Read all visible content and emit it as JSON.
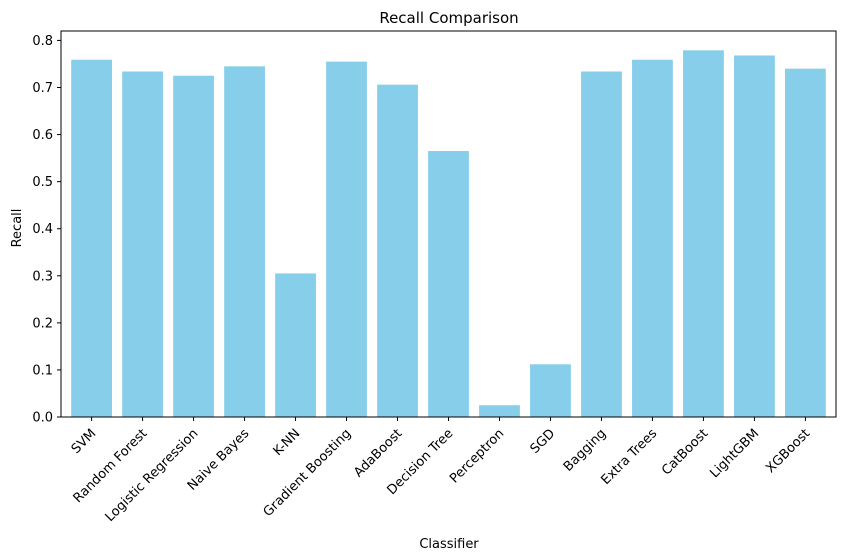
{
  "chart_data": {
    "type": "bar",
    "title": "Recall Comparison",
    "xlabel": "Classifier",
    "ylabel": "Recall",
    "categories": [
      "SVM",
      "Random Forest",
      "Logistic Regression",
      "Naive Bayes",
      "K-NN",
      "Gradient Boosting",
      "AdaBoost",
      "Decision Tree",
      "Perceptron",
      "SGD",
      "Bagging",
      "Extra Trees",
      "CatBoost",
      "LightGBM",
      "XGBoost"
    ],
    "values": [
      0.759,
      0.734,
      0.725,
      0.745,
      0.305,
      0.755,
      0.706,
      0.565,
      0.025,
      0.112,
      0.734,
      0.759,
      0.779,
      0.768,
      0.74
    ],
    "ylim": [
      0,
      0.82
    ],
    "yticks": [
      0.0,
      0.1,
      0.2,
      0.3,
      0.4,
      0.5,
      0.6,
      0.7,
      0.8
    ],
    "ytick_labels": [
      "0.0",
      "0.1",
      "0.2",
      "0.3",
      "0.4",
      "0.5",
      "0.6",
      "0.7",
      "0.8"
    ],
    "bar_color": "#87ceeb",
    "grid": false,
    "legend": "none"
  }
}
